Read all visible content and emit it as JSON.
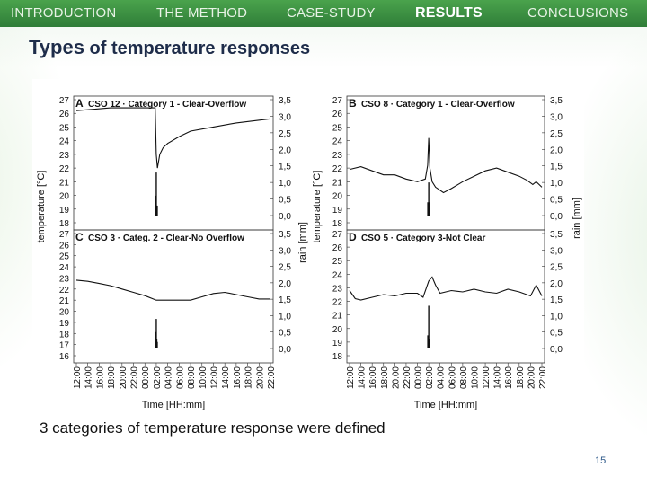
{
  "nav": {
    "items": [
      {
        "label": "INTRODUCTION",
        "active": false
      },
      {
        "label": "THE METHOD",
        "active": false
      },
      {
        "label": "CASE-STUDY",
        "active": false
      },
      {
        "label": "RESULTS",
        "active": true
      },
      {
        "label": "CONCLUSIONS",
        "active": false
      }
    ]
  },
  "title": {
    "bold": "Types",
    "rest": " of temperature responses"
  },
  "caption": "3 categories of temperature response were defined",
  "page_number": "15",
  "colors": {
    "nav_top": "#4aa34c",
    "nav_bottom": "#2f7d38",
    "title": "#1e2d4a",
    "line": "#111111"
  },
  "chart_data": {
    "type": "line",
    "shared": {
      "x_tick_labels": [
        "12:00",
        "14:00",
        "16:00",
        "18:00",
        "20:00",
        "22:00",
        "00:00",
        "02:00",
        "04:00",
        "06:00",
        "08:00",
        "10:00",
        "12:00",
        "14:00",
        "16:00",
        "18:00",
        "20:00",
        "22:00"
      ],
      "xlabel": "Time [HH:mm]",
      "ylabel_left": "temperature [°C]",
      "ylabel_right": "rain [mm]",
      "rain_ticks": [
        "3,5",
        "3,0",
        "2,5",
        "2,0",
        "1,5",
        "1,0",
        "0,5",
        "0,0"
      ],
      "rain_ylim": [
        0,
        3.5
      ]
    },
    "panels": [
      {
        "letter": "A",
        "title": "CSO 12 · Category 1 - Clear-Overflow",
        "ylim": [
          18,
          27
        ],
        "yticks": [
          "27",
          "26",
          "25",
          "24",
          "23",
          "22",
          "21",
          "20",
          "19",
          "18"
        ],
        "x": [
          0,
          1.5,
          3,
          5.5,
          6.9,
          7.0,
          7.1,
          7.3,
          7.6,
          8,
          9,
          10,
          12,
          14,
          17
        ],
        "temperature": [
          26.2,
          26.3,
          26.4,
          26.4,
          26.4,
          23.0,
          22.0,
          23.0,
          23.5,
          23.8,
          24.3,
          24.7,
          25.0,
          25.3,
          25.6
        ],
        "rain_x": [
          6.92,
          6.96,
          7.0,
          7.04,
          7.08
        ],
        "rain": [
          0.6,
          0.2,
          1.3,
          0.3,
          0.3
        ]
      },
      {
        "letter": "B",
        "title": "CSO 8 · Category 1 - Clear-Overflow",
        "ylim": [
          18,
          27
        ],
        "yticks": [
          "27",
          "26",
          "25",
          "24",
          "23",
          "22",
          "21",
          "20",
          "19",
          "18"
        ],
        "x": [
          0,
          1,
          2,
          3,
          4,
          5,
          6,
          6.7,
          6.9,
          7.0,
          7.1,
          7.3,
          7.6,
          8.3,
          9,
          10,
          11,
          12,
          13,
          14,
          15,
          15.7,
          16.2,
          16.5,
          17
        ],
        "temperature": [
          21.9,
          22.1,
          21.8,
          21.5,
          21.5,
          21.2,
          21.0,
          21.2,
          22.2,
          24.2,
          22.0,
          21.0,
          20.6,
          20.2,
          20.5,
          21.0,
          21.4,
          21.8,
          22.0,
          21.7,
          21.4,
          21.1,
          20.8,
          21.0,
          20.6
        ],
        "rain_x": [
          6.92,
          6.96,
          7.0,
          7.04,
          7.08
        ],
        "rain": [
          0.4,
          0.2,
          1.0,
          0.4,
          0.2
        ]
      },
      {
        "letter": "C",
        "title": "CSO 3 · Categ. 2 - Clear-No Overflow",
        "ylim": [
          16,
          27
        ],
        "yticks": [
          "27",
          "26",
          "25",
          "24",
          "23",
          "22",
          "21",
          "20",
          "19",
          "18",
          "17",
          "16"
        ],
        "x": [
          0,
          1,
          2,
          3,
          4,
          5,
          6,
          7,
          8,
          9,
          10,
          11,
          12,
          13,
          14,
          15,
          16,
          17
        ],
        "temperature": [
          22.8,
          22.7,
          22.5,
          22.3,
          22.0,
          21.7,
          21.4,
          21.0,
          21.0,
          21.0,
          21.0,
          21.3,
          21.6,
          21.7,
          21.5,
          21.3,
          21.1,
          21.1
        ],
        "rain_x": [
          6.92,
          6.96,
          7.0,
          7.04,
          7.08
        ],
        "rain": [
          0.5,
          0.2,
          0.9,
          0.3,
          0.2
        ]
      },
      {
        "letter": "D",
        "title": "CSO 5 · Category 3-Not Clear",
        "ylim": [
          18,
          27
        ],
        "yticks": [
          "27",
          "26",
          "25",
          "24",
          "23",
          "22",
          "21",
          "20",
          "19",
          "18"
        ],
        "x": [
          0,
          0.5,
          1,
          2,
          3,
          4,
          5,
          6,
          6.5,
          7,
          7.3,
          7.6,
          8,
          9,
          10,
          11,
          12,
          13,
          14,
          15,
          16,
          16.5,
          17
        ],
        "temperature": [
          22.8,
          22.2,
          22.1,
          22.3,
          22.5,
          22.4,
          22.6,
          22.6,
          22.3,
          23.5,
          23.8,
          23.2,
          22.6,
          22.8,
          22.7,
          22.9,
          22.7,
          22.6,
          22.9,
          22.7,
          22.4,
          23.2,
          22.4
        ],
        "rain_x": [
          6.92,
          6.96,
          7.0,
          7.04,
          7.08
        ],
        "rain": [
          0.4,
          0.2,
          1.3,
          0.3,
          0.2
        ]
      }
    ]
  }
}
